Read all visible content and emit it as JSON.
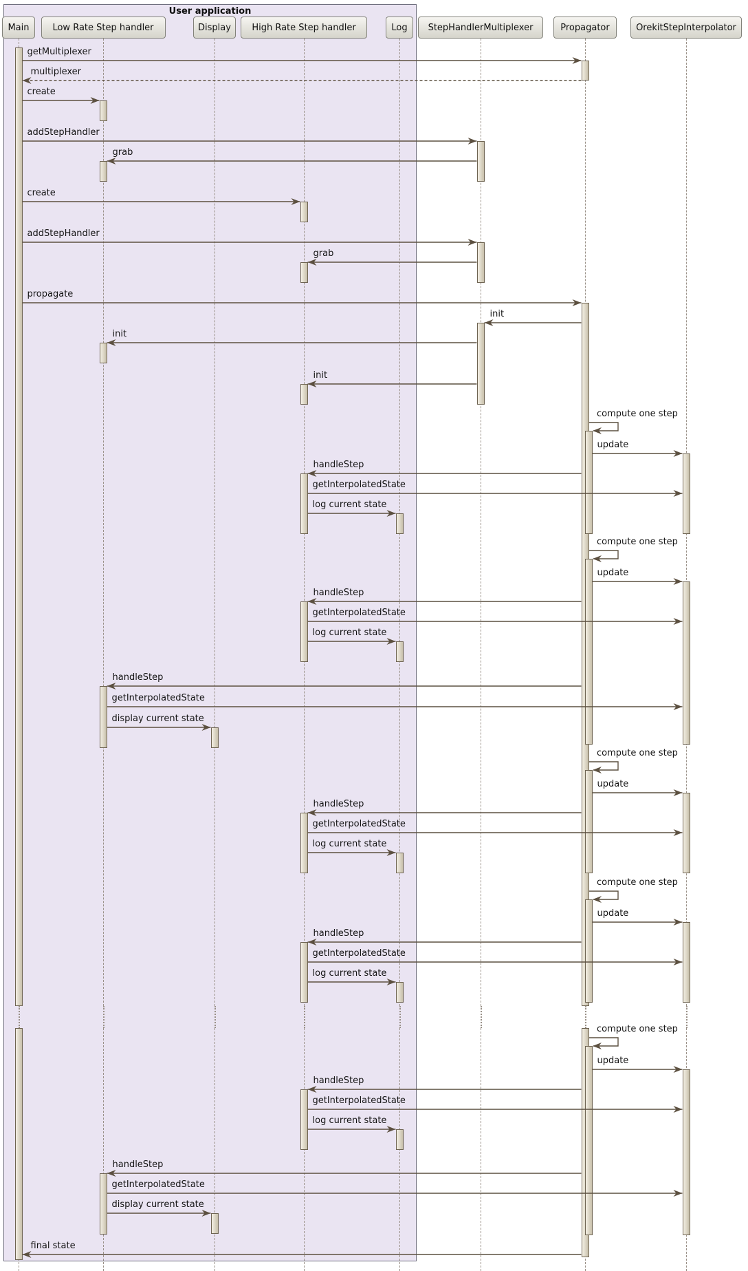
{
  "diagram": {
    "frame_title": "User application",
    "participants": [
      {
        "id": "main",
        "label": "Main",
        "in_frame": true
      },
      {
        "id": "low_rate",
        "label": "Low Rate Step handler",
        "in_frame": true
      },
      {
        "id": "display",
        "label": "Display",
        "in_frame": true
      },
      {
        "id": "high_rate",
        "label": "High Rate Step handler",
        "in_frame": true
      },
      {
        "id": "log",
        "label": "Log",
        "in_frame": true
      },
      {
        "id": "multiplexer",
        "label": "StepHandlerMultiplexer",
        "in_frame": false
      },
      {
        "id": "propagator",
        "label": "Propagator",
        "in_frame": false
      },
      {
        "id": "interpolator",
        "label": "OrekitStepInterpolator",
        "in_frame": false
      }
    ],
    "messages": [
      {
        "label": "getMultiplexer",
        "from": "main",
        "to": "propagator",
        "style": "sync"
      },
      {
        "label": "multiplexer",
        "from": "propagator",
        "to": "main",
        "style": "return"
      },
      {
        "label": "create",
        "from": "main",
        "to": "low_rate",
        "style": "sync"
      },
      {
        "label": "addStepHandler",
        "from": "main",
        "to": "multiplexer",
        "style": "sync"
      },
      {
        "label": "grab",
        "from": "multiplexer",
        "to": "low_rate",
        "style": "sync"
      },
      {
        "label": "create",
        "from": "main",
        "to": "high_rate",
        "style": "sync"
      },
      {
        "label": "addStepHandler",
        "from": "main",
        "to": "multiplexer",
        "style": "sync"
      },
      {
        "label": "grab",
        "from": "multiplexer",
        "to": "high_rate",
        "style": "sync"
      },
      {
        "label": "propagate",
        "from": "main",
        "to": "propagator",
        "style": "sync"
      },
      {
        "label": "init",
        "from": "propagator",
        "to": "multiplexer",
        "style": "sync"
      },
      {
        "label": "init",
        "from": "multiplexer",
        "to": "low_rate",
        "style": "sync"
      },
      {
        "label": "init",
        "from": "multiplexer",
        "to": "high_rate",
        "style": "sync"
      },
      {
        "label": "compute one step",
        "from": "propagator",
        "to": "propagator",
        "style": "self"
      },
      {
        "label": "update",
        "from": "propagator",
        "to": "interpolator",
        "style": "sync"
      },
      {
        "label": "handleStep",
        "from": "propagator",
        "to": "high_rate",
        "style": "sync"
      },
      {
        "label": "getInterpolatedState",
        "from": "high_rate",
        "to": "interpolator",
        "style": "sync"
      },
      {
        "label": "log current state",
        "from": "high_rate",
        "to": "log",
        "style": "sync"
      },
      {
        "label": "compute one step",
        "from": "propagator",
        "to": "propagator",
        "style": "self"
      },
      {
        "label": "update",
        "from": "propagator",
        "to": "interpolator",
        "style": "sync"
      },
      {
        "label": "handleStep",
        "from": "propagator",
        "to": "high_rate",
        "style": "sync"
      },
      {
        "label": "getInterpolatedState",
        "from": "high_rate",
        "to": "interpolator",
        "style": "sync"
      },
      {
        "label": "log current state",
        "from": "high_rate",
        "to": "log",
        "style": "sync"
      },
      {
        "label": "handleStep",
        "from": "propagator",
        "to": "low_rate",
        "style": "sync"
      },
      {
        "label": "getInterpolatedState",
        "from": "low_rate",
        "to": "interpolator",
        "style": "sync"
      },
      {
        "label": "display current state",
        "from": "low_rate",
        "to": "display",
        "style": "sync"
      },
      {
        "label": "compute one step",
        "from": "propagator",
        "to": "propagator",
        "style": "self"
      },
      {
        "label": "update",
        "from": "propagator",
        "to": "interpolator",
        "style": "sync"
      },
      {
        "label": "handleStep",
        "from": "propagator",
        "to": "high_rate",
        "style": "sync"
      },
      {
        "label": "getInterpolatedState",
        "from": "high_rate",
        "to": "interpolator",
        "style": "sync"
      },
      {
        "label": "log current state",
        "from": "high_rate",
        "to": "log",
        "style": "sync"
      },
      {
        "label": "compute one step",
        "from": "propagator",
        "to": "propagator",
        "style": "self"
      },
      {
        "label": "update",
        "from": "propagator",
        "to": "interpolator",
        "style": "sync"
      },
      {
        "label": "handleStep",
        "from": "propagator",
        "to": "high_rate",
        "style": "sync"
      },
      {
        "label": "getInterpolatedState",
        "from": "high_rate",
        "to": "interpolator",
        "style": "sync"
      },
      {
        "label": "log current state",
        "from": "high_rate",
        "to": "log",
        "style": "sync"
      },
      {
        "label": "compute one step",
        "from": "propagator",
        "to": "propagator",
        "style": "self"
      },
      {
        "label": "update",
        "from": "propagator",
        "to": "interpolator",
        "style": "sync"
      },
      {
        "label": "handleStep",
        "from": "propagator",
        "to": "high_rate",
        "style": "sync"
      },
      {
        "label": "getInterpolatedState",
        "from": "high_rate",
        "to": "interpolator",
        "style": "sync"
      },
      {
        "label": "log current state",
        "from": "high_rate",
        "to": "log",
        "style": "sync"
      },
      {
        "label": "handleStep",
        "from": "propagator",
        "to": "low_rate",
        "style": "sync"
      },
      {
        "label": "getInterpolatedState",
        "from": "low_rate",
        "to": "interpolator",
        "style": "sync"
      },
      {
        "label": "display current state",
        "from": "low_rate",
        "to": "display",
        "style": "sync"
      },
      {
        "label": "final state",
        "from": "propagator",
        "to": "main",
        "style": "sync"
      }
    ]
  }
}
